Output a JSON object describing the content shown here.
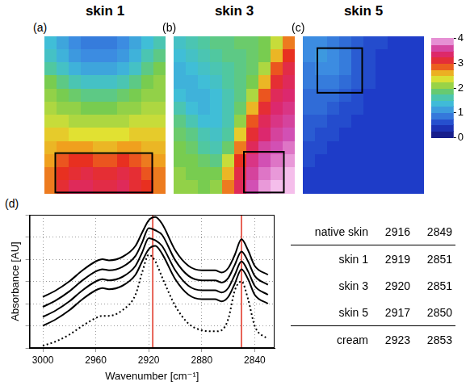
{
  "chart_data": [
    {
      "type": "heatmap",
      "panel": "(a)",
      "title": "skin 1",
      "tick_labels": false,
      "cells": [
        [
          1.4,
          1.2,
          1.0,
          0.9,
          0.9,
          0.9,
          1.0,
          1.2,
          1.4,
          1.6
        ],
        [
          1.5,
          1.3,
          1.1,
          1.0,
          1.0,
          1.0,
          1.1,
          1.3,
          1.6,
          1.8
        ],
        [
          1.7,
          1.5,
          1.3,
          1.2,
          1.2,
          1.2,
          1.3,
          1.5,
          1.8,
          2.0
        ],
        [
          2.0,
          1.8,
          1.6,
          1.5,
          1.5,
          1.5,
          1.6,
          1.8,
          2.0,
          2.1
        ],
        [
          2.1,
          2.0,
          1.9,
          1.8,
          1.8,
          1.8,
          1.9,
          2.0,
          2.1,
          2.1
        ],
        [
          2.2,
          2.1,
          2.1,
          2.0,
          2.0,
          2.0,
          2.1,
          2.1,
          2.2,
          2.2
        ],
        [
          2.3,
          2.3,
          2.2,
          2.2,
          2.2,
          2.2,
          2.2,
          2.3,
          2.3,
          2.3
        ],
        [
          2.5,
          2.5,
          2.4,
          2.4,
          2.4,
          2.4,
          2.4,
          2.5,
          2.5,
          2.5
        ],
        [
          2.6,
          2.7,
          2.7,
          2.7,
          2.6,
          2.6,
          2.7,
          2.7,
          2.6,
          2.6
        ],
        [
          2.7,
          2.9,
          3.0,
          3.0,
          2.9,
          2.9,
          3.0,
          2.9,
          2.8,
          2.7
        ],
        [
          2.8,
          3.0,
          3.1,
          3.2,
          3.1,
          3.1,
          3.2,
          3.1,
          2.9,
          2.8
        ],
        [
          2.8,
          3.1,
          3.3,
          3.3,
          3.2,
          3.2,
          3.3,
          3.1,
          3.0,
          2.8
        ]
      ],
      "box": [
        0.9,
        8.9,
        8.9,
        11.9
      ]
    },
    {
      "type": "heatmap",
      "panel": "(b)",
      "title": "skin 3",
      "tick_labels": false,
      "cells": [
        [
          1.5,
          1.6,
          1.7,
          1.8,
          1.8,
          1.9,
          1.9,
          2.0,
          2.3,
          2.8
        ],
        [
          1.4,
          1.5,
          1.6,
          1.7,
          1.8,
          1.8,
          1.9,
          2.0,
          2.6,
          3.0
        ],
        [
          1.3,
          1.4,
          1.5,
          1.6,
          1.7,
          1.8,
          1.9,
          2.2,
          2.9,
          3.2
        ],
        [
          1.3,
          1.3,
          1.4,
          1.5,
          1.7,
          1.8,
          2.0,
          2.6,
          3.1,
          3.3
        ],
        [
          1.4,
          1.3,
          1.3,
          1.4,
          1.6,
          1.8,
          2.2,
          2.9,
          3.3,
          3.4
        ],
        [
          1.6,
          1.4,
          1.3,
          1.4,
          1.6,
          1.9,
          2.6,
          3.1,
          3.4,
          3.5
        ],
        [
          1.8,
          1.6,
          1.4,
          1.4,
          1.6,
          2.1,
          2.9,
          3.3,
          3.5,
          3.6
        ],
        [
          1.9,
          1.8,
          1.6,
          1.5,
          1.7,
          2.5,
          3.1,
          3.4,
          3.6,
          3.7
        ],
        [
          2.0,
          1.9,
          1.7,
          1.6,
          1.9,
          2.8,
          3.3,
          3.6,
          3.7,
          3.8
        ],
        [
          2.0,
          2.0,
          1.9,
          1.8,
          2.3,
          3.0,
          3.5,
          3.7,
          3.8,
          3.9
        ],
        [
          2.1,
          2.0,
          2.0,
          2.0,
          2.6,
          3.2,
          3.6,
          3.8,
          3.9,
          4.0
        ],
        [
          2.1,
          2.1,
          2.0,
          2.1,
          2.8,
          3.3,
          3.7,
          3.9,
          4.0,
          4.0
        ]
      ],
      "box": [
        5.8,
        9.1,
        8.8,
        11.9
      ]
    },
    {
      "type": "heatmap",
      "panel": "(c)",
      "title": "skin 5",
      "tick_labels": false,
      "cells": [
        [
          1.0,
          1.0,
          0.9,
          0.8,
          0.7,
          0.6,
          0.6,
          0.5,
          0.5,
          0.5
        ],
        [
          1.0,
          1.1,
          1.0,
          0.9,
          0.7,
          0.6,
          0.5,
          0.5,
          0.5,
          0.5
        ],
        [
          0.9,
          1.0,
          1.0,
          0.9,
          0.7,
          0.6,
          0.5,
          0.5,
          0.5,
          0.5
        ],
        [
          0.9,
          0.9,
          0.9,
          0.8,
          0.7,
          0.6,
          0.5,
          0.5,
          0.5,
          0.5
        ],
        [
          0.8,
          0.8,
          0.8,
          0.7,
          0.6,
          0.5,
          0.5,
          0.5,
          0.5,
          0.5
        ],
        [
          0.8,
          0.8,
          0.7,
          0.6,
          0.6,
          0.5,
          0.5,
          0.5,
          0.5,
          0.5
        ],
        [
          0.7,
          0.7,
          0.6,
          0.6,
          0.5,
          0.5,
          0.5,
          0.5,
          0.5,
          0.5
        ],
        [
          0.7,
          0.6,
          0.6,
          0.5,
          0.5,
          0.5,
          0.5,
          0.5,
          0.5,
          0.5
        ],
        [
          0.6,
          0.6,
          0.5,
          0.5,
          0.5,
          0.5,
          0.5,
          0.5,
          0.5,
          0.5
        ],
        [
          0.6,
          0.5,
          0.5,
          0.5,
          0.5,
          0.5,
          0.5,
          0.5,
          0.5,
          0.5
        ],
        [
          0.5,
          0.5,
          0.5,
          0.5,
          0.5,
          0.5,
          0.5,
          0.5,
          0.5,
          0.5
        ],
        [
          0.5,
          0.5,
          0.5,
          0.5,
          0.5,
          0.5,
          0.5,
          0.5,
          0.5,
          0.5
        ]
      ],
      "box": [
        1.2,
        4.9,
        0.9,
        4.3
      ]
    },
    {
      "type": "line",
      "panel": "(d)",
      "x_label": "Wavenumber [cm⁻¹]",
      "y_label": "Absorbance [AU]",
      "x": [
        3000,
        2990,
        2980,
        2970,
        2960,
        2955,
        2950,
        2940,
        2930,
        2925,
        2920,
        2915,
        2910,
        2900,
        2890,
        2880,
        2870,
        2865,
        2860,
        2855,
        2850,
        2845,
        2840,
        2830
      ],
      "series": [
        {
          "name": "native skin",
          "color": "#000000",
          "line_style": "solid",
          "values": [
            2.3,
            2.6,
            3.0,
            3.5,
            3.9,
            4.0,
            3.95,
            4.1,
            4.6,
            5.2,
            5.75,
            5.9,
            5.6,
            4.4,
            3.7,
            3.5,
            3.5,
            3.4,
            3.6,
            4.2,
            4.9,
            4.4,
            3.7,
            3.3
          ]
        },
        {
          "name": "skin 1",
          "color": "#000000",
          "line_style": "solid",
          "values": [
            1.85,
            2.15,
            2.55,
            3.05,
            3.45,
            3.55,
            3.5,
            3.65,
            4.15,
            4.75,
            5.4,
            5.3,
            5.1,
            3.95,
            3.25,
            3.05,
            3.05,
            2.95,
            3.15,
            3.75,
            4.35,
            3.9,
            3.25,
            2.85
          ]
        },
        {
          "name": "skin 3",
          "color": "#000000",
          "line_style": "solid",
          "values": [
            1.4,
            1.7,
            2.1,
            2.6,
            3.0,
            3.1,
            3.05,
            3.2,
            3.7,
            4.3,
            4.95,
            4.85,
            4.6,
            3.5,
            2.8,
            2.6,
            2.6,
            2.5,
            2.7,
            3.3,
            3.9,
            3.45,
            2.8,
            2.4
          ]
        },
        {
          "name": "skin 5",
          "color": "#000000",
          "line_style": "solid",
          "values": [
            1.0,
            1.3,
            1.7,
            2.2,
            2.6,
            2.7,
            2.65,
            2.8,
            3.3,
            3.9,
            4.45,
            4.6,
            4.25,
            3.1,
            2.4,
            2.2,
            2.2,
            2.1,
            2.3,
            2.9,
            3.55,
            3.1,
            2.4,
            2.0
          ]
        },
        {
          "name": "cream",
          "color": "#000000",
          "line_style": "dotted",
          "values": [
            0.1,
            0.3,
            0.6,
            1.0,
            1.35,
            1.45,
            1.45,
            1.7,
            2.4,
            3.4,
            4.2,
            3.9,
            3.2,
            1.9,
            1.1,
            0.8,
            0.75,
            0.8,
            1.3,
            2.6,
            3.0,
            2.2,
            1.0,
            0.4
          ]
        }
      ],
      "xlim": [
        3010,
        2825
      ],
      "xticks": [
        3000,
        2960,
        2920,
        2880,
        2840
      ],
      "ylim": [
        0,
        6
      ],
      "yticks": [
        0,
        1,
        2,
        3,
        4,
        5,
        6
      ],
      "grid": true,
      "tick_labels": "x",
      "reference_lines": {
        "x": [
          2917,
          2850
        ],
        "color": "#e03020"
      }
    }
  ],
  "colorbar": {
    "range": [
      0,
      4
    ],
    "ticks": [
      0,
      1,
      2,
      3,
      4
    ]
  },
  "table": {
    "rows": [
      [
        "native skin",
        2916,
        2849
      ],
      [
        "skin 1",
        2919,
        2851
      ],
      [
        "skin 3",
        2920,
        2851
      ],
      [
        "skin 5",
        2917,
        2850
      ],
      [
        "cream",
        2923,
        2853
      ]
    ]
  }
}
